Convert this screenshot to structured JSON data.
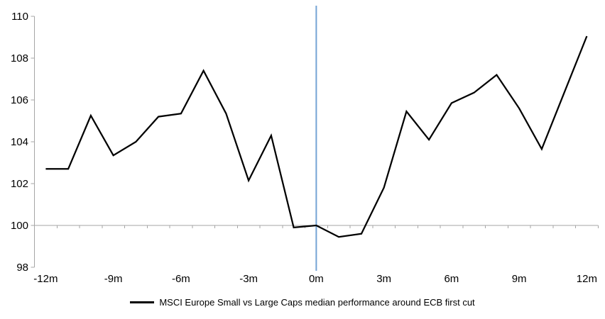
{
  "chart_data": {
    "type": "line",
    "title": "",
    "categories": [
      "-12m",
      "-11m",
      "-10m",
      "-9m",
      "-8m",
      "-7m",
      "-6m",
      "-5m",
      "-4m",
      "-3m",
      "-2m",
      "-1m",
      "0m",
      "1m",
      "2m",
      "3m",
      "4m",
      "5m",
      "6m",
      "7m",
      "8m",
      "9m",
      "10m",
      "11m",
      "12m"
    ],
    "series": [
      {
        "name": "MSCI Europe Small vs Large Caps median performance around ECB first cut",
        "color": "#000000",
        "values": [
          102.7,
          102.7,
          105.25,
          103.35,
          104.0,
          105.2,
          105.35,
          107.4,
          105.35,
          102.15,
          104.3,
          99.9,
          100.0,
          99.45,
          99.6,
          101.8,
          105.45,
          104.1,
          105.85,
          106.35,
          107.2,
          105.6,
          103.65,
          106.35,
          109.05
        ]
      }
    ],
    "xlabel": "",
    "ylabel": "",
    "ylim": [
      98,
      110
    ],
    "y_ticks": [
      110,
      108,
      106,
      104,
      102,
      100,
      98
    ],
    "x_tick_labels": [
      "-12m",
      "-9m",
      "-6m",
      "-3m",
      "0m",
      "3m",
      "6m",
      "9m",
      "12m"
    ],
    "x_label_every": 3,
    "baseline": 100,
    "event_line_at": "0m",
    "grid": "off",
    "legend_position": "bottom",
    "colors": {
      "axis": "#a6a6a6",
      "event_line": "#74a3d4",
      "text": "#000000",
      "background": "#ffffff"
    }
  },
  "legend": {
    "label": "MSCI Europe Small vs Large Caps median performance around ECB first cut"
  }
}
